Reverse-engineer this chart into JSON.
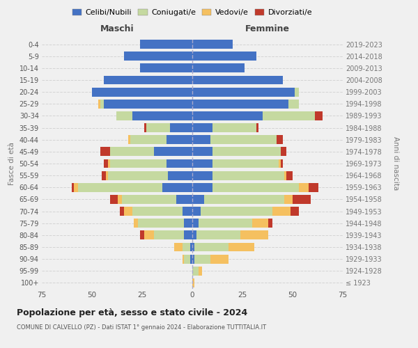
{
  "age_groups": [
    "100+",
    "95-99",
    "90-94",
    "85-89",
    "80-84",
    "75-79",
    "70-74",
    "65-69",
    "60-64",
    "55-59",
    "50-54",
    "45-49",
    "40-44",
    "35-39",
    "30-34",
    "25-29",
    "20-24",
    "15-19",
    "10-14",
    "5-9",
    "0-4"
  ],
  "birth_years": [
    "≤ 1923",
    "1924-1928",
    "1929-1933",
    "1934-1938",
    "1939-1943",
    "1944-1948",
    "1949-1953",
    "1954-1958",
    "1959-1963",
    "1964-1968",
    "1969-1973",
    "1974-1978",
    "1979-1983",
    "1984-1988",
    "1989-1993",
    "1994-1998",
    "1999-2003",
    "2004-2008",
    "2009-2013",
    "2014-2018",
    "2019-2023"
  ],
  "colors": {
    "celibe": "#4472C4",
    "coniugato": "#C5D9A0",
    "vedovo": "#F5C060",
    "divorziato": "#C0392B"
  },
  "maschi": {
    "celibe": [
      0,
      0,
      1,
      1,
      4,
      4,
      5,
      8,
      15,
      12,
      13,
      19,
      13,
      11,
      30,
      44,
      50,
      44,
      26,
      34,
      26
    ],
    "coniugato": [
      0,
      0,
      3,
      4,
      15,
      23,
      25,
      27,
      42,
      30,
      28,
      22,
      18,
      12,
      8,
      2,
      0,
      0,
      0,
      0,
      0
    ],
    "vedovo": [
      0,
      0,
      1,
      4,
      5,
      2,
      4,
      2,
      2,
      1,
      1,
      0,
      1,
      0,
      0,
      1,
      0,
      0,
      0,
      0,
      0
    ],
    "divorziato": [
      0,
      0,
      0,
      0,
      2,
      0,
      2,
      4,
      1,
      2,
      2,
      5,
      0,
      1,
      0,
      0,
      0,
      0,
      0,
      0,
      0
    ]
  },
  "femmine": {
    "celibe": [
      0,
      0,
      1,
      1,
      2,
      3,
      4,
      6,
      10,
      10,
      10,
      10,
      9,
      10,
      35,
      48,
      51,
      45,
      26,
      32,
      20
    ],
    "coniugato": [
      0,
      3,
      8,
      17,
      22,
      27,
      36,
      40,
      43,
      36,
      33,
      34,
      33,
      22,
      26,
      5,
      2,
      0,
      0,
      0,
      0
    ],
    "vedovo": [
      1,
      2,
      9,
      13,
      14,
      8,
      9,
      4,
      5,
      1,
      1,
      0,
      0,
      0,
      0,
      0,
      0,
      0,
      0,
      0,
      0
    ],
    "divorziato": [
      0,
      0,
      0,
      0,
      0,
      2,
      4,
      9,
      5,
      3,
      1,
      3,
      3,
      1,
      4,
      0,
      0,
      0,
      0,
      0,
      0
    ]
  },
  "xlim": 75,
  "title_main": "Popolazione per età, sesso e stato civile - 2024",
  "title_sub": "COMUNE DI CALVELLO (PZ) - Dati ISTAT 1° gennaio 2024 - Elaborazione TUTTITALIA.IT",
  "ylabel": "Fasce di età",
  "ylabel_right": "Anni di nascita",
  "xlabel_maschi": "Maschi",
  "xlabel_femmine": "Femmine",
  "legend_labels": [
    "Celibi/Nubili",
    "Coniugati/e",
    "Vedovi/e",
    "Divorziati/e"
  ],
  "background_color": "#f0f0f0",
  "grid_color": "#cccccc"
}
